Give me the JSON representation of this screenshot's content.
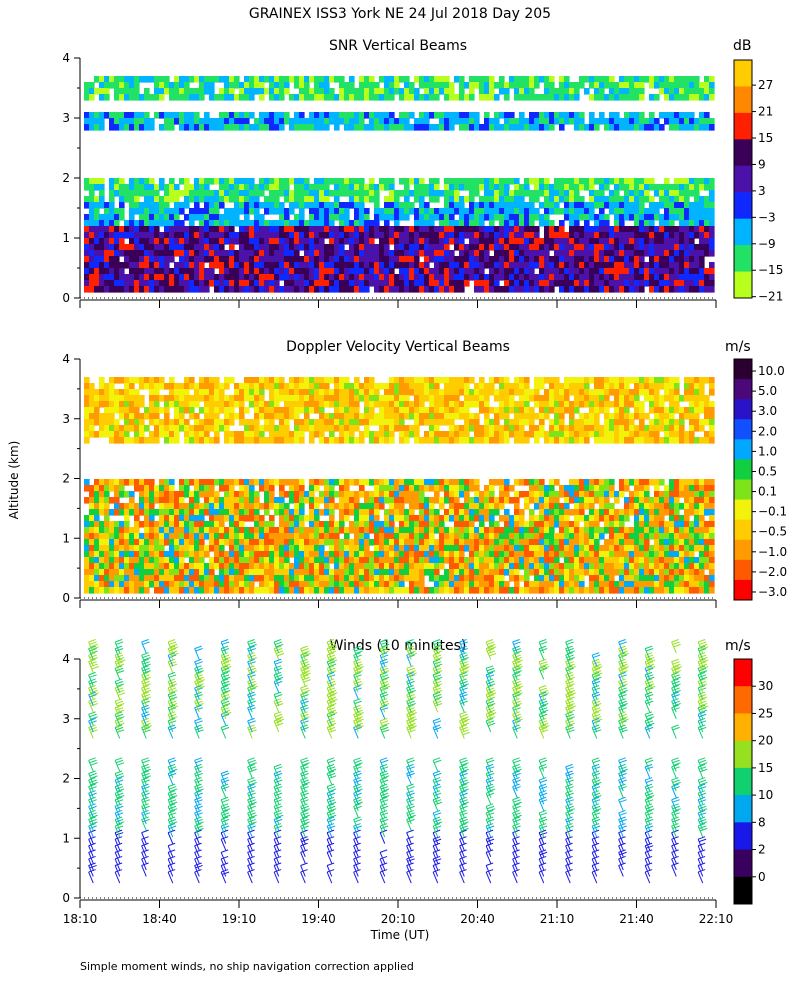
{
  "title": "GRAINEX ISS3 York NE  24 Jul 2018 Day 205",
  "y_axis_label": "Altitude (km)",
  "x_axis_label": "Time (UT)",
  "footnote": "Simple moment winds, no ship navigation correction applied",
  "x_ticks": [
    "18:10",
    "18:40",
    "19:10",
    "19:40",
    "20:10",
    "20:40",
    "21:10",
    "21:40",
    "22:10"
  ],
  "y_ticks": [
    "0",
    "1",
    "2",
    "3",
    "4"
  ],
  "chart_data": [
    {
      "type": "heatmap",
      "title": "SNR Vertical Beams",
      "units": "dB",
      "xlim": [
        "18:10",
        "22:10"
      ],
      "ylim": [
        0,
        4
      ],
      "colorbar": {
        "labels": [
          "27",
          "21",
          "15",
          "9",
          "3",
          "−3",
          "−9",
          "−15",
          "−21"
        ],
        "colors": [
          "#ffcc00",
          "#ff8800",
          "#ff2000",
          "#3a0058",
          "#4a12a8",
          "#0f28ff",
          "#00b4ff",
          "#22e266",
          "#b8ff1e"
        ]
      },
      "layers": [
        {
          "altitude_km": [
            3.3,
            3.7
          ],
          "snr_range_db": [
            -21,
            -9
          ]
        },
        {
          "altitude_km": [
            2.8,
            3.1
          ],
          "snr_range_db": [
            -15,
            -3
          ]
        },
        {
          "altitude_km": [
            1.6,
            2.0
          ],
          "snr_range_db": [
            -21,
            -9
          ]
        },
        {
          "altitude_km": [
            1.2,
            1.6
          ],
          "snr_range_db": [
            -15,
            -3
          ]
        },
        {
          "altitude_km": [
            0.1,
            1.2
          ],
          "snr_range_db": [
            -3,
            15
          ]
        }
      ]
    },
    {
      "type": "heatmap",
      "title": "Doppler Velocity Vertical Beams",
      "units": "m/s",
      "xlim": [
        "18:10",
        "22:10"
      ],
      "ylim": [
        0,
        4
      ],
      "colorbar": {
        "labels": [
          "10.0",
          "5.0",
          "3.0",
          "2.0",
          "1.0",
          "0.5",
          "0.1",
          "−0.1",
          "−0.5",
          "−1.0",
          "−2.0",
          "−3.0"
        ],
        "colors": [
          "#2a0030",
          "#4a0878",
          "#2a12c8",
          "#1050ff",
          "#00a8ff",
          "#10d040",
          "#7ee41a",
          "#f2f20a",
          "#ffcc00",
          "#ff9a00",
          "#ff5a00",
          "#ff0000"
        ]
      },
      "layers": [
        {
          "altitude_km": [
            2.6,
            3.7
          ],
          "velocity_range_ms": [
            -1.0,
            0.1
          ]
        },
        {
          "altitude_km": [
            0.1,
            2.0
          ],
          "velocity_range_ms": [
            -2.0,
            1.0
          ]
        }
      ]
    },
    {
      "type": "wind_barbs",
      "title": "Winds (10 minutes)",
      "units": "m/s",
      "xlim": [
        "18:10",
        "22:10"
      ],
      "ylim": [
        0,
        4
      ],
      "interval_minutes": 10,
      "colorbar": {
        "labels": [
          "30",
          "25",
          "20",
          "15",
          "10",
          "8",
          "2",
          "0"
        ],
        "colors": [
          "#ff0000",
          "#ff6a00",
          "#ffb000",
          "#96e020",
          "#10d070",
          "#00a8f0",
          "#1818e8",
          "#3a0060",
          "#000000"
        ]
      },
      "speed_by_altitude": [
        {
          "altitude_km": [
            0.2,
            1.0
          ],
          "speed_ms": [
            2,
            8
          ]
        },
        {
          "altitude_km": [
            1.0,
            2.2
          ],
          "speed_ms": [
            8,
            15
          ]
        },
        {
          "altitude_km": [
            2.6,
            4.1
          ],
          "speed_ms": [
            8,
            20
          ]
        }
      ]
    }
  ]
}
